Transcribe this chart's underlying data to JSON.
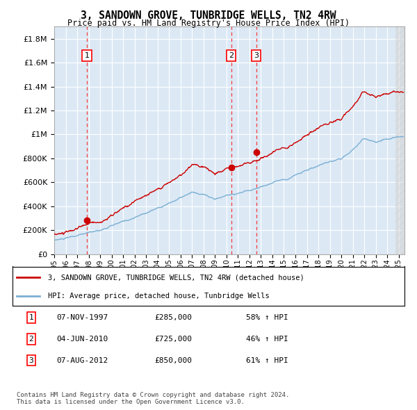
{
  "title": "3, SANDOWN GROVE, TUNBRIDGE WELLS, TN2 4RW",
  "subtitle": "Price paid vs. HM Land Registry's House Price Index (HPI)",
  "ylabel_ticks": [
    "£0",
    "£200K",
    "£400K",
    "£600K",
    "£800K",
    "£1M",
    "£1.2M",
    "£1.4M",
    "£1.6M",
    "£1.8M"
  ],
  "ytick_values": [
    0,
    200000,
    400000,
    600000,
    800000,
    1000000,
    1200000,
    1400000,
    1600000,
    1800000
  ],
  "ylim": [
    0,
    1900000
  ],
  "xlim_start": 1995.0,
  "xlim_end": 2025.5,
  "sale_color": "#cc0000",
  "hpi_color": "#7bafd4",
  "sale_label": "3, SANDOWN GROVE, TUNBRIDGE WELLS, TN2 4RW (detached house)",
  "hpi_label": "HPI: Average price, detached house, Tunbridge Wells",
  "transactions": [
    {
      "num": 1,
      "date": "07-NOV-1997",
      "price": 285000,
      "year": 1997.85,
      "pct": "58%",
      "dir": "↑"
    },
    {
      "num": 2,
      "date": "04-JUN-2010",
      "price": 725000,
      "year": 2010.42,
      "pct": "46%",
      "dir": "↑"
    },
    {
      "num": 3,
      "date": "07-AUG-2012",
      "price": 850000,
      "year": 2012.6,
      "pct": "61%",
      "dir": "↑"
    }
  ],
  "footer": "Contains HM Land Registry data © Crown copyright and database right 2024.\nThis data is licensed under the Open Government Licence v3.0.",
  "plot_bg": "#dce9f5",
  "grid_color": "#ffffff"
}
